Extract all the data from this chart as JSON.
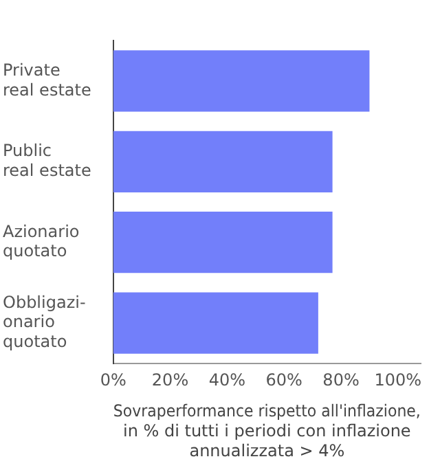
{
  "chart_data": {
    "type": "bar",
    "orientation": "horizontal",
    "categories": [
      "Private\nreal estate",
      "Public\nreal estate",
      "Azionario\nquotato",
      "Obbligazi-\nonario\nquotato"
    ],
    "values": [
      90,
      77,
      77,
      72
    ],
    "color": "#727ffa",
    "xlim": [
      0,
      108
    ],
    "xticks": [
      {
        "value": 0,
        "label": "0%"
      },
      {
        "value": 20,
        "label": "20%"
      },
      {
        "value": 40,
        "label": "40%"
      },
      {
        "value": 60,
        "label": "60%"
      },
      {
        "value": 80,
        "label": "80%"
      },
      {
        "value": 100,
        "label": "100%"
      }
    ],
    "xlabel": "Sovraperformance rispetto all'inflazione,\nin % di tutti i periodi con inflazione\nannualizzata > 4%",
    "grid": false,
    "legend": false
  }
}
